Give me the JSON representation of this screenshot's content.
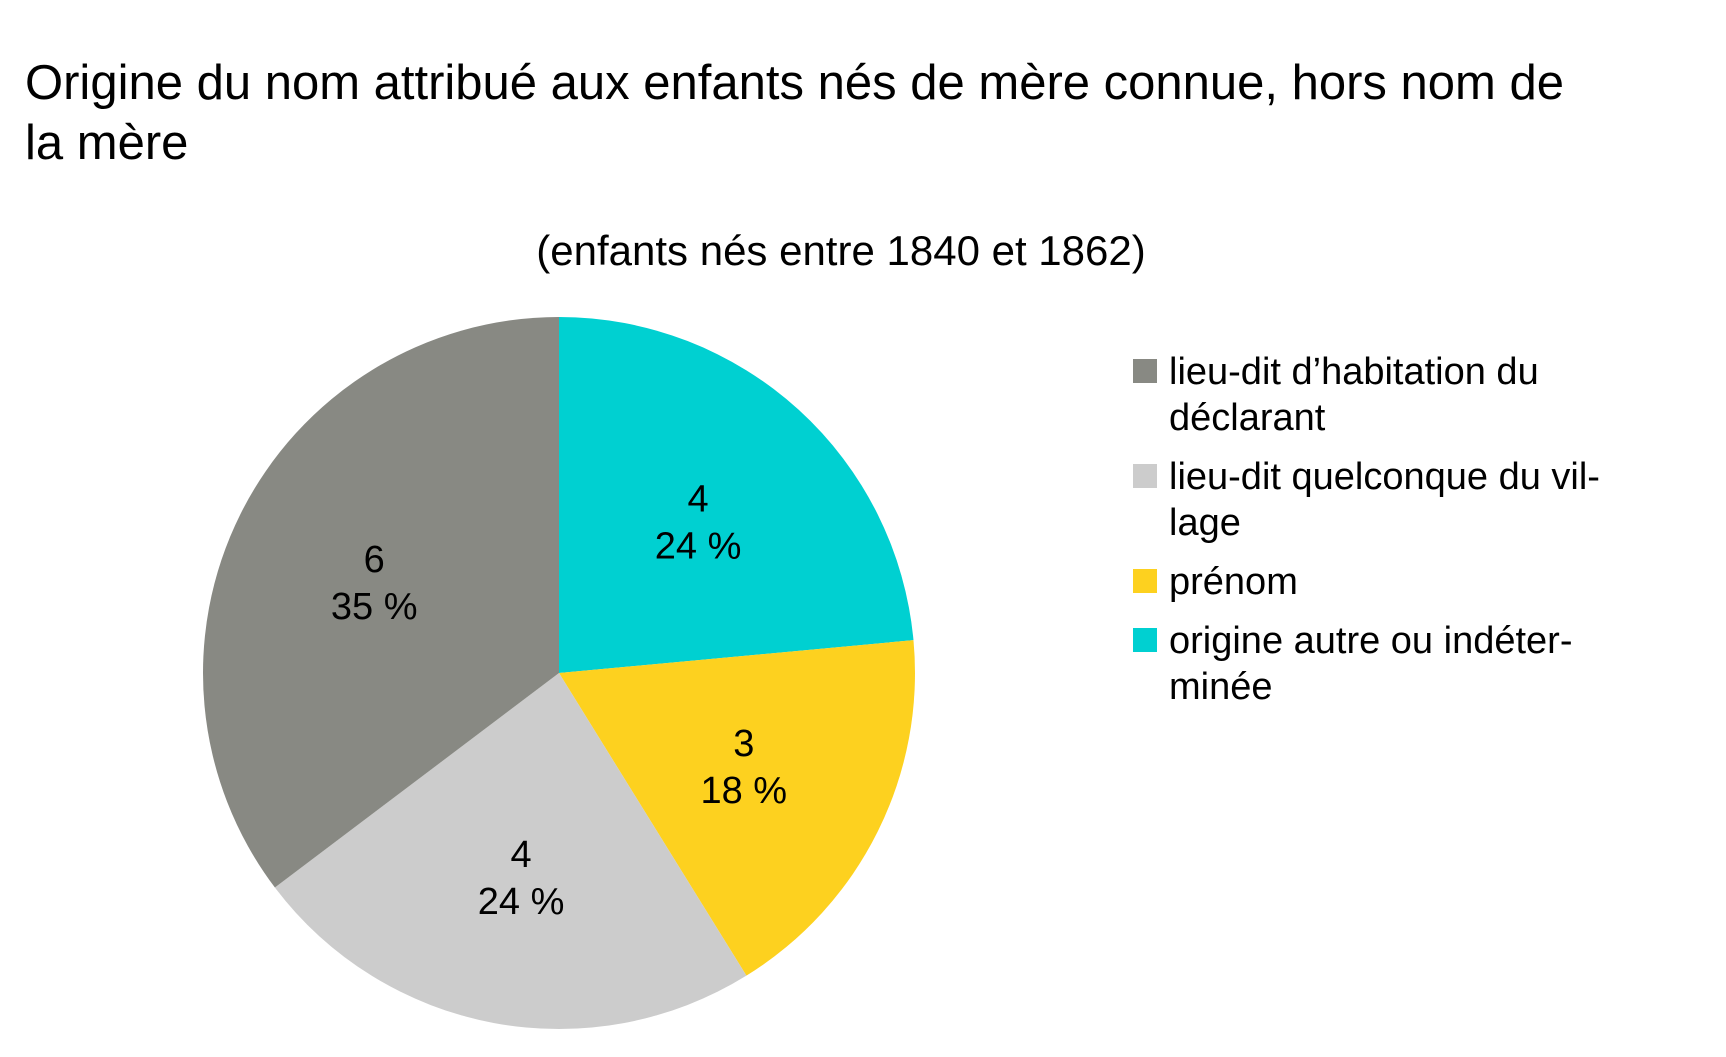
{
  "chart_data": {
    "type": "pie",
    "title": "Origine du nom attribué aux enfants nés de mère connue, hors nom de la mère",
    "title_lines": [
      "Origine du nom attribué aux enfants nés de mère connue, hors nom de",
      "la mère"
    ],
    "subtitle": "(enfants nés entre 1840 et 1862)",
    "legend_position": "right",
    "start_angle": "12 o'clock",
    "direction": "clockwise",
    "slices": [
      {
        "label": "origine autre ou indéterminée",
        "legend_lines": [
          "origine autre ou indéter-",
          "minée"
        ],
        "value": 4,
        "percent_label": "24 %",
        "color": "#00d0d1"
      },
      {
        "label": "prénom",
        "legend_lines": [
          "prénom"
        ],
        "value": 3,
        "percent_label": "18 %",
        "color": "#fdd11f"
      },
      {
        "label": "lieu-dit quelconque du village",
        "legend_lines": [
          "lieu-dit quelconque du vil-",
          "lage"
        ],
        "value": 4,
        "percent_label": "24 %",
        "color": "#cccccc"
      },
      {
        "label": "lieu-dit d’habitation du déclarant",
        "legend_lines": [
          "lieu-dit d’habitation du",
          "déclarant"
        ],
        "value": 6,
        "percent_label": "35 %",
        "color": "#888983"
      }
    ],
    "legend_order": [
      "lieu-dit d’habitation du déclarant",
      "lieu-dit quelconque du village",
      "prénom",
      "origine autre ou indéterminée"
    ]
  }
}
